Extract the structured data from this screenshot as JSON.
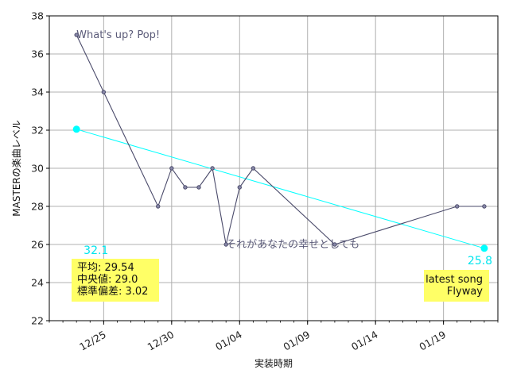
{
  "chart_data": {
    "type": "line",
    "title": "",
    "xlabel": "実装時期",
    "ylabel": "MASTERの楽曲レベル",
    "ylim": [
      22,
      38
    ],
    "yticks": [
      22,
      24,
      26,
      28,
      30,
      32,
      34,
      36,
      38
    ],
    "xlim": [
      "2022-12-21",
      "2023-01-23"
    ],
    "xticks": [
      {
        "date": "2022-12-25",
        "label": "12/25"
      },
      {
        "date": "2022-12-30",
        "label": "12/30"
      },
      {
        "date": "2023-01-04",
        "label": "01/04"
      },
      {
        "date": "2023-01-09",
        "label": "01/09"
      },
      {
        "date": "2023-01-14",
        "label": "01/14"
      },
      {
        "date": "2023-01-19",
        "label": "01/19"
      }
    ],
    "grid": true,
    "series": [
      {
        "color": "#4a4a6a",
        "points": [
          {
            "x": "2022-12-23",
            "y": 37
          },
          {
            "x": "2022-12-25",
            "y": 34
          },
          {
            "x": "2022-12-29",
            "y": 28
          },
          {
            "x": "2022-12-30",
            "y": 30
          },
          {
            "x": "2022-12-31",
            "y": 29
          },
          {
            "x": "2023-01-01",
            "y": 29
          },
          {
            "x": "2023-01-02",
            "y": 30
          },
          {
            "x": "2023-01-03",
            "y": 26
          },
          {
            "x": "2023-01-04",
            "y": 29
          },
          {
            "x": "2023-01-05",
            "y": 30
          },
          {
            "x": "2023-01-11",
            "y": 26
          },
          {
            "x": "2023-01-20",
            "y": 28
          },
          {
            "x": "2023-01-22",
            "y": 28
          }
        ]
      }
    ],
    "trend": {
      "color": "#00ffff",
      "start": {
        "x": "2022-12-23",
        "y": 32.05
      },
      "end": {
        "x": "2023-01-22",
        "y": 25.8
      },
      "start_label": "32.1",
      "end_label": "25.8"
    },
    "annotations": [
      {
        "text": "What's up? Pop!",
        "x": "2022-12-23",
        "y": 37
      },
      {
        "text": "それがあなたの幸せとしても",
        "x": "2023-01-03",
        "y": 26
      }
    ],
    "stats_box": {
      "lines": [
        "平均: 29.54",
        "中央値: 29.0",
        "標準偏差:  3.02"
      ],
      "background": "#ffff66"
    },
    "latest_box": {
      "lines": [
        "latest song",
        "Flyway"
      ],
      "background": "#ffff66"
    }
  }
}
